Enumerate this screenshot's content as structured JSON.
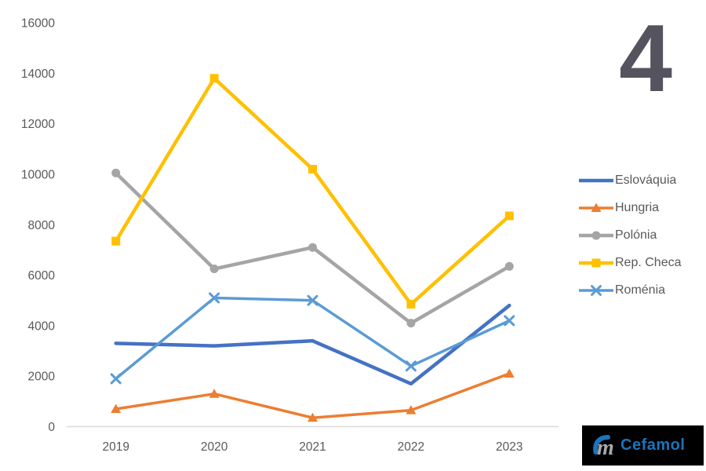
{
  "page": {
    "big_number": "4"
  },
  "logo": {
    "text": "Cefamol",
    "mark": "m-swoosh-icon"
  },
  "colors": {
    "background": "#FFFFFF",
    "axis_text": "#595959",
    "axis_line": "#D9D9D9",
    "big_number": "#55535E",
    "logo_bg": "#000000",
    "logo_text_blue": "#1B75BC",
    "logo_mark_gray": "#A7A9AC"
  },
  "chart_data": {
    "type": "line",
    "title": "",
    "xlabel": "",
    "ylabel": "",
    "categories": [
      "2019",
      "2020",
      "2021",
      "2022",
      "2023"
    ],
    "series": [
      {
        "name": "Eslováquia",
        "color": "#4472C4",
        "marker": "none",
        "line_width": 4.5,
        "values": [
          3300,
          3200,
          3400,
          1700,
          4800
        ]
      },
      {
        "name": "Hungria",
        "color": "#ED7D31",
        "marker": "triangle",
        "line_width": 3.5,
        "values": [
          700,
          1300,
          350,
          650,
          2100
        ]
      },
      {
        "name": "Polónia",
        "color": "#A5A5A5",
        "marker": "circle",
        "line_width": 4.5,
        "values": [
          10050,
          6250,
          7100,
          4100,
          6350
        ]
      },
      {
        "name": "Rep. Checa",
        "color": "#FFC000",
        "marker": "square",
        "line_width": 4.5,
        "values": [
          7350,
          13800,
          10200,
          4850,
          8350
        ]
      },
      {
        "name": "Roménia",
        "color": "#5B9BD5",
        "marker": "x",
        "line_width": 3.5,
        "values": [
          1900,
          5100,
          5000,
          2400,
          4200
        ]
      }
    ],
    "ylim": [
      0,
      16000
    ],
    "ytick_step": 2000,
    "grid": false,
    "legend_position": "right"
  }
}
